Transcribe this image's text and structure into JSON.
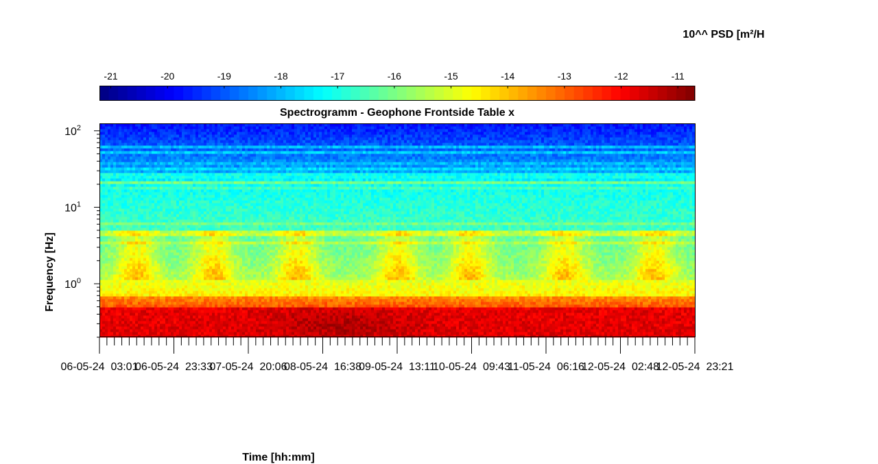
{
  "chart_data": {
    "type": "heatmap",
    "title": "Spectrogramm - Geophone Frontside Table x",
    "xlabel": "Time [hh:mm]",
    "ylabel": "Frequency [Hz]",
    "x_tick_labels": [
      "06-05-24  03:01",
      "06-05-24  23:33",
      "07-05-24  20:06",
      "08-05-24  16:38",
      "09-05-24  13:11",
      "10-05-24  09:43",
      "11-05-24  06:16",
      "12-05-24  02:48",
      "12-05-24  23:21"
    ],
    "y_scale": "log",
    "y_tick_labels": [
      {
        "base": "10",
        "exp": "0"
      },
      {
        "base": "10",
        "exp": "1"
      },
      {
        "base": "10",
        "exp": "2"
      }
    ],
    "ylim": [
      0.2,
      125
    ],
    "colorbar": {
      "label": "10^^ PSD [m²/H",
      "ticks": [
        "-21",
        "-20",
        "-19",
        "-18",
        "-17",
        "-16",
        "-15",
        "-14",
        "-13",
        "-12",
        "-11"
      ],
      "range": [
        -21.2,
        -10.7
      ],
      "colormap": "jet",
      "placement": "top"
    },
    "description_rows": {
      "low_freq_band_log10_psd": -11.8,
      "transition_band_log10_psd": -15.0,
      "mid_band_log10_psd": -16.5,
      "high_band_log10_psd": -19.5
    }
  }
}
